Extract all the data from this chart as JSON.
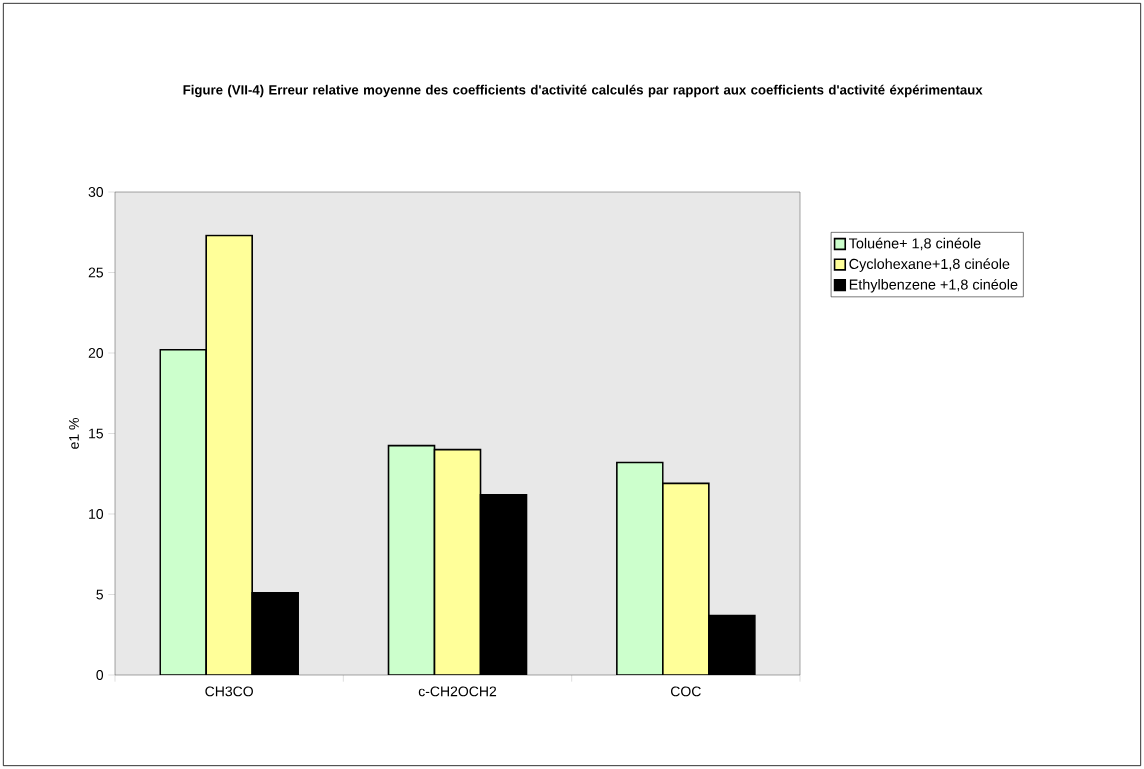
{
  "chart_data": {
    "type": "bar",
    "title": "Figure (VII-4) Erreur relative moyenne des coefficients d'activité calculés par rapport aux coefficients d'activité éxpérimentaux",
    "ylabel": "e1 %",
    "categories": [
      "CH3CO",
      "c-CH2OCH2",
      "COC"
    ],
    "series": [
      {
        "name": "Toluéne+ 1,8 cinéole",
        "color": "#ccffcc",
        "values": [
          20.2,
          14.25,
          13.2
        ]
      },
      {
        "name": "Cyclohexane+1,8 cinéole",
        "color": "#ffff99",
        "values": [
          27.3,
          14.0,
          11.9
        ]
      },
      {
        "name": "Ethylbenzene +1,8 cinéole",
        "color": "#000000",
        "values": [
          5.1,
          11.2,
          3.7
        ]
      }
    ],
    "ylim": [
      0,
      30
    ],
    "yticks": [
      0,
      5,
      10,
      15,
      20,
      25,
      30
    ],
    "legend": "right"
  }
}
